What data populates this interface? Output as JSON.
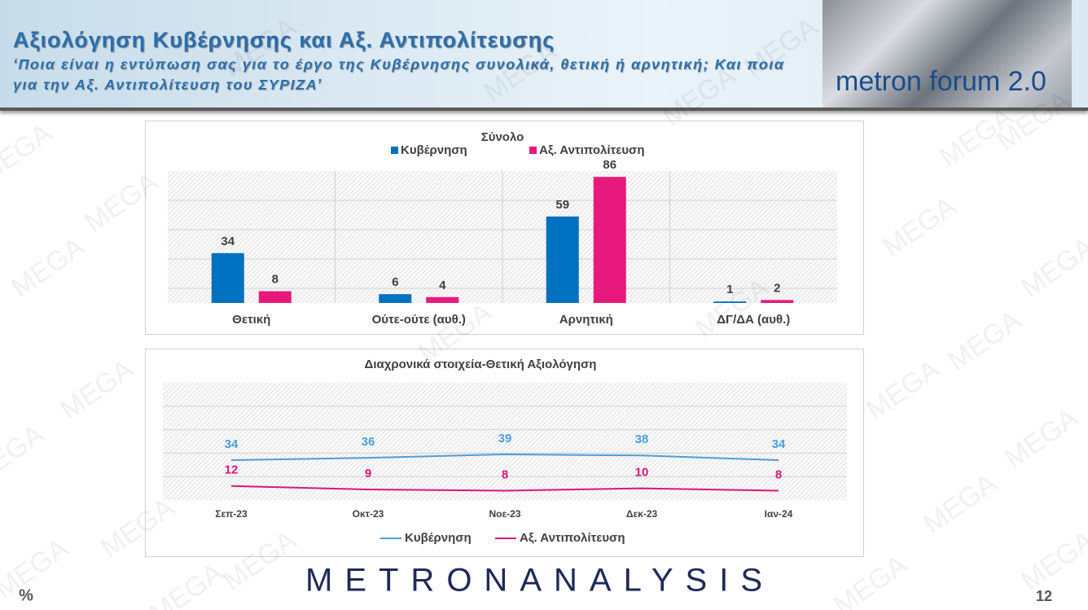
{
  "header": {
    "title": "Αξιολόγηση Κυβέρνησης και Αξ. Αντιπολίτευσης",
    "subtitle": "‘Ποια είναι η εντύπωση σας για το έργο της Κυβέρνησης συνολικά, θετική ή αρνητική; Και ποια για την Αξ. Αντιπολίτευση του ΣΥΡΙΖΑ’",
    "logo": "metron forum 2.0"
  },
  "chart_data": [
    {
      "type": "bar",
      "title": "Σύνολο",
      "categories": [
        "Θετική",
        "Ούτε-ούτε (αυθ.)",
        "Αρνητική",
        "ΔΓ/ΔΑ (αυθ.)"
      ],
      "series": [
        {
          "name": "Κυβέρνηση",
          "color": "#0070c0",
          "values": [
            34,
            6,
            59,
            1
          ]
        },
        {
          "name": "Αξ. Αντιπολίτευση",
          "color": "#e8197c",
          "values": [
            8,
            4,
            86,
            2
          ]
        }
      ],
      "ylim": [
        0,
        90
      ],
      "legend": "top"
    },
    {
      "type": "line",
      "title": "Διαχρονικά στοιχεία-Θετική Αξιολόγηση",
      "categories": [
        "Σεπ-23",
        "Οκτ-23",
        "Νοε-23",
        "Δεκ-23",
        "Ιαν-24"
      ],
      "series": [
        {
          "name": "Κυβέρνηση",
          "color": "#4a9ee0",
          "values": [
            34,
            36,
            39,
            38,
            34
          ]
        },
        {
          "name": "Αξ. Αντιπολίτευση",
          "color": "#d6187a",
          "values": [
            12,
            9,
            8,
            10,
            8
          ]
        }
      ],
      "ylim": [
        0,
        100
      ],
      "legend": "bottom"
    }
  ],
  "footer": {
    "brand": "METRONANALYSIS",
    "unit": "%",
    "page": "12"
  },
  "watermark": "MEGA"
}
